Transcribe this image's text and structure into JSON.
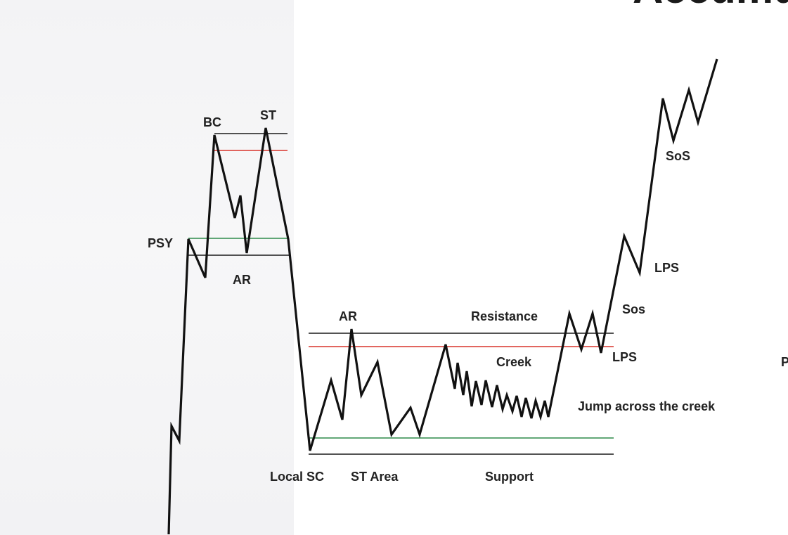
{
  "diagram": {
    "title_fragment": "Accumulatio",
    "labels": {
      "bc": "BC",
      "st_top": "ST",
      "psy": "PSY",
      "ar_top": "AR",
      "ar_range": "AR",
      "resistance": "Resistance",
      "creek": "Creek",
      "local_sc": "Local SC",
      "st_area": "ST Area",
      "support": "Support",
      "jump": "Jump across the creek",
      "lps_low": "LPS",
      "sos_low": "Sos",
      "lps_high": "LPS",
      "sos_high": "SoS",
      "cut_right": "P"
    },
    "colors": {
      "price_line": "#111111",
      "level_black": "#1a1a1a",
      "level_red": "#d9342b",
      "level_green": "#2e8b4a",
      "label": "#222222",
      "background_panel": "#f3f3f5"
    }
  }
}
